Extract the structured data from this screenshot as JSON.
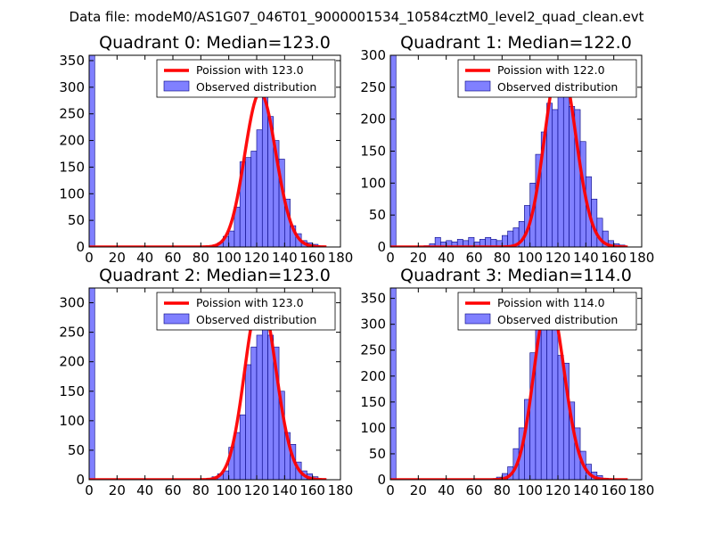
{
  "figure": {
    "suptitle": "Data file: modeM0/AS1G07_046T01_9000001534_10584cztM0_level2_quad_clean.evt"
  },
  "colors": {
    "bar_fill": "#8080ff",
    "bar_stroke": "#000080",
    "poisson_line": "#ff0000",
    "axes": "#000000",
    "background": "#ffffff"
  },
  "chart_data": [
    {
      "type": "bar",
      "title": "Quadrant 0: Median=123.0",
      "xlim": [
        0,
        180
      ],
      "ylim": [
        0,
        360
      ],
      "xticks": [
        "0",
        "20",
        "40",
        "60",
        "80",
        "100",
        "120",
        "140",
        "160",
        "180"
      ],
      "yticks": [
        "0",
        "50",
        "100",
        "150",
        "200",
        "250",
        "300",
        "350"
      ],
      "legend": [
        "Poission with 123.0",
        "Observed distribution"
      ],
      "legend_loc": "top-right",
      "bin_width": 4,
      "bins": [
        {
          "x": 0,
          "h": 360
        },
        {
          "x": 88,
          "h": 3
        },
        {
          "x": 92,
          "h": 8
        },
        {
          "x": 96,
          "h": 20
        },
        {
          "x": 100,
          "h": 30
        },
        {
          "x": 104,
          "h": 75
        },
        {
          "x": 108,
          "h": 160
        },
        {
          "x": 112,
          "h": 168
        },
        {
          "x": 116,
          "h": 180
        },
        {
          "x": 120,
          "h": 220
        },
        {
          "x": 124,
          "h": 290
        },
        {
          "x": 128,
          "h": 245
        },
        {
          "x": 132,
          "h": 200
        },
        {
          "x": 136,
          "h": 165
        },
        {
          "x": 140,
          "h": 90
        },
        {
          "x": 144,
          "h": 40
        },
        {
          "x": 148,
          "h": 25
        },
        {
          "x": 152,
          "h": 12
        },
        {
          "x": 156,
          "h": 8
        },
        {
          "x": 160,
          "h": 5
        },
        {
          "x": 164,
          "h": 2
        }
      ],
      "poisson": {
        "mean": 123.0,
        "x_range": [
          0,
          170
        ],
        "scale": 290
      }
    },
    {
      "type": "bar",
      "title": "Quadrant 1: Median=122.0",
      "xlim": [
        0,
        180
      ],
      "ylim": [
        0,
        300
      ],
      "xticks": [
        "0",
        "20",
        "40",
        "60",
        "80",
        "100",
        "120",
        "140",
        "160",
        "180"
      ],
      "yticks": [
        "0",
        "50",
        "100",
        "150",
        "200",
        "250",
        "300"
      ],
      "legend": [
        "Poission with 122.0",
        "Observed distribution"
      ],
      "legend_loc": "top-right",
      "bin_width": 4,
      "bins": [
        {
          "x": 0,
          "h": 300
        },
        {
          "x": 24,
          "h": 2
        },
        {
          "x": 28,
          "h": 5
        },
        {
          "x": 32,
          "h": 15
        },
        {
          "x": 36,
          "h": 8
        },
        {
          "x": 40,
          "h": 10
        },
        {
          "x": 44,
          "h": 8
        },
        {
          "x": 48,
          "h": 12
        },
        {
          "x": 52,
          "h": 10
        },
        {
          "x": 56,
          "h": 15
        },
        {
          "x": 60,
          "h": 8
        },
        {
          "x": 64,
          "h": 12
        },
        {
          "x": 68,
          "h": 15
        },
        {
          "x": 72,
          "h": 12
        },
        {
          "x": 76,
          "h": 10
        },
        {
          "x": 80,
          "h": 18
        },
        {
          "x": 84,
          "h": 25
        },
        {
          "x": 88,
          "h": 30
        },
        {
          "x": 92,
          "h": 40
        },
        {
          "x": 96,
          "h": 65
        },
        {
          "x": 100,
          "h": 100
        },
        {
          "x": 104,
          "h": 145
        },
        {
          "x": 108,
          "h": 180
        },
        {
          "x": 112,
          "h": 225
        },
        {
          "x": 116,
          "h": 215
        },
        {
          "x": 120,
          "h": 285
        },
        {
          "x": 124,
          "h": 260
        },
        {
          "x": 128,
          "h": 220
        },
        {
          "x": 132,
          "h": 215
        },
        {
          "x": 136,
          "h": 165
        },
        {
          "x": 140,
          "h": 110
        },
        {
          "x": 144,
          "h": 75
        },
        {
          "x": 148,
          "h": 45
        },
        {
          "x": 152,
          "h": 25
        },
        {
          "x": 156,
          "h": 10
        },
        {
          "x": 160,
          "h": 5
        },
        {
          "x": 164,
          "h": 3
        }
      ],
      "poisson": {
        "mean": 122.0,
        "x_range": [
          0,
          170
        ],
        "scale": 290
      }
    },
    {
      "type": "bar",
      "title": "Quadrant 2: Median=123.0",
      "xlim": [
        0,
        180
      ],
      "ylim": [
        0,
        325
      ],
      "xticks": [
        "0",
        "20",
        "40",
        "60",
        "80",
        "100",
        "120",
        "140",
        "160",
        "180"
      ],
      "yticks": [
        "0",
        "50",
        "100",
        "150",
        "200",
        "250",
        "300"
      ],
      "legend": [
        "Poission with 123.0",
        "Observed distribution"
      ],
      "legend_loc": "top-right",
      "bin_width": 4,
      "bins": [
        {
          "x": 0,
          "h": 325
        },
        {
          "x": 84,
          "h": 2
        },
        {
          "x": 88,
          "h": 5
        },
        {
          "x": 92,
          "h": 10
        },
        {
          "x": 96,
          "h": 15
        },
        {
          "x": 100,
          "h": 55
        },
        {
          "x": 104,
          "h": 80
        },
        {
          "x": 108,
          "h": 110
        },
        {
          "x": 112,
          "h": 195
        },
        {
          "x": 116,
          "h": 225
        },
        {
          "x": 120,
          "h": 245
        },
        {
          "x": 124,
          "h": 300
        },
        {
          "x": 128,
          "h": 245
        },
        {
          "x": 132,
          "h": 225
        },
        {
          "x": 136,
          "h": 150
        },
        {
          "x": 140,
          "h": 80
        },
        {
          "x": 144,
          "h": 60
        },
        {
          "x": 148,
          "h": 30
        },
        {
          "x": 152,
          "h": 15
        },
        {
          "x": 156,
          "h": 10
        },
        {
          "x": 160,
          "h": 5
        }
      ],
      "poisson": {
        "mean": 123.0,
        "x_range": [
          0,
          170
        ],
        "scale": 310
      }
    },
    {
      "type": "bar",
      "title": "Quadrant 3: Median=114.0",
      "xlim": [
        0,
        180
      ],
      "ylim": [
        0,
        370
      ],
      "xticks": [
        "0",
        "20",
        "40",
        "60",
        "80",
        "100",
        "120",
        "140",
        "160",
        "180"
      ],
      "yticks": [
        "0",
        "50",
        "100",
        "150",
        "200",
        "250",
        "300",
        "350"
      ],
      "legend": [
        "Poission with 114.0",
        "Observed distribution"
      ],
      "legend_loc": "top-right",
      "bin_width": 4,
      "bins": [
        {
          "x": 0,
          "h": 370
        },
        {
          "x": 72,
          "h": 2
        },
        {
          "x": 76,
          "h": 5
        },
        {
          "x": 80,
          "h": 12
        },
        {
          "x": 84,
          "h": 25
        },
        {
          "x": 88,
          "h": 60
        },
        {
          "x": 92,
          "h": 100
        },
        {
          "x": 96,
          "h": 155
        },
        {
          "x": 100,
          "h": 245
        },
        {
          "x": 104,
          "h": 300
        },
        {
          "x": 108,
          "h": 325
        },
        {
          "x": 112,
          "h": 320
        },
        {
          "x": 116,
          "h": 360
        },
        {
          "x": 120,
          "h": 240
        },
        {
          "x": 124,
          "h": 225
        },
        {
          "x": 128,
          "h": 150
        },
        {
          "x": 132,
          "h": 100
        },
        {
          "x": 136,
          "h": 55
        },
        {
          "x": 140,
          "h": 30
        },
        {
          "x": 144,
          "h": 15
        },
        {
          "x": 148,
          "h": 8
        },
        {
          "x": 152,
          "h": 3
        }
      ],
      "poisson": {
        "mean": 114.0,
        "x_range": [
          0,
          170
        ],
        "scale": 350
      }
    }
  ]
}
